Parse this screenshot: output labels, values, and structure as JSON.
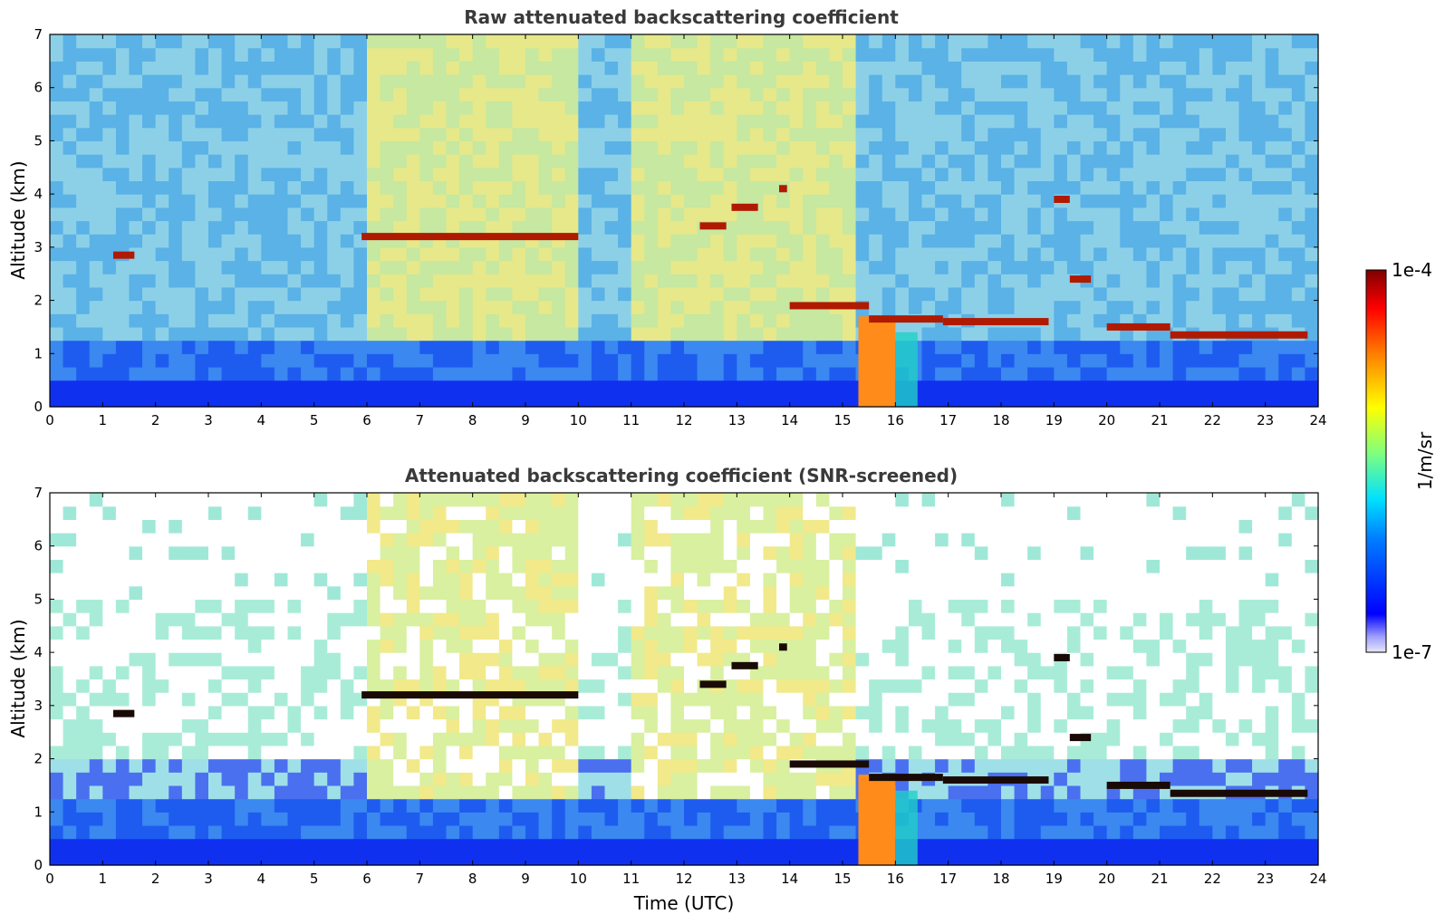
{
  "chart_data": [
    {
      "type": "heatmap",
      "title": "Raw attenuated backscattering coefficient",
      "xlabel": "",
      "ylabel": "Altitude (km)",
      "xlim": [
        0,
        24
      ],
      "ylim": [
        0,
        7
      ],
      "xticks": [
        "0",
        "1",
        "2",
        "3",
        "4",
        "5",
        "6",
        "7",
        "8",
        "9",
        "10",
        "11",
        "12",
        "13",
        "14",
        "15",
        "16",
        "17",
        "18",
        "19",
        "20",
        "21",
        "22",
        "23",
        "24"
      ],
      "yticks": [
        "0",
        "1",
        "2",
        "3",
        "4",
        "5",
        "6",
        "7"
      ],
      "screened": false,
      "cloud_layers": [
        {
          "x": [
            1.2,
            1.6
          ],
          "y": 2.85
        },
        {
          "x": [
            5.9,
            10.0
          ],
          "y": 3.2
        },
        {
          "x": [
            12.3,
            12.8
          ],
          "y": 3.4
        },
        {
          "x": [
            12.9,
            13.4
          ],
          "y": 3.75
        },
        {
          "x": [
            13.8,
            13.95
          ],
          "y": 4.1
        },
        {
          "x": [
            14.0,
            15.5
          ],
          "y": 1.9
        },
        {
          "x": [
            15.5,
            16.9
          ],
          "y": 1.65
        },
        {
          "x": [
            16.9,
            18.9
          ],
          "y": 1.6
        },
        {
          "x": [
            19.0,
            19.3
          ],
          "y": 3.9
        },
        {
          "x": [
            19.3,
            19.7
          ],
          "y": 2.4
        },
        {
          "x": [
            20.0,
            21.2
          ],
          "y": 1.5
        },
        {
          "x": [
            21.2,
            23.8
          ],
          "y": 1.35
        }
      ],
      "precipitation": [
        [
          15.3,
          16.0
        ]
      ]
    },
    {
      "type": "heatmap",
      "title": "Attenuated backscattering coefficient (SNR-screened)",
      "xlabel": "Time (UTC)",
      "ylabel": "Altitude (km)",
      "xlim": [
        0,
        24
      ],
      "ylim": [
        0,
        7
      ],
      "xticks": [
        "0",
        "1",
        "2",
        "3",
        "4",
        "5",
        "6",
        "7",
        "8",
        "9",
        "10",
        "11",
        "12",
        "13",
        "14",
        "15",
        "16",
        "17",
        "18",
        "19",
        "20",
        "21",
        "22",
        "23",
        "24"
      ],
      "yticks": [
        "0",
        "1",
        "2",
        "3",
        "4",
        "5",
        "6",
        "7"
      ],
      "screened": true,
      "cloud_layers": [
        {
          "x": [
            1.2,
            1.6
          ],
          "y": 2.85
        },
        {
          "x": [
            5.9,
            10.0
          ],
          "y": 3.2
        },
        {
          "x": [
            12.3,
            12.8
          ],
          "y": 3.4
        },
        {
          "x": [
            12.9,
            13.4
          ],
          "y": 3.75
        },
        {
          "x": [
            13.8,
            13.95
          ],
          "y": 4.1
        },
        {
          "x": [
            14.0,
            15.5
          ],
          "y": 1.9
        },
        {
          "x": [
            15.5,
            16.9
          ],
          "y": 1.65
        },
        {
          "x": [
            16.9,
            18.9
          ],
          "y": 1.6
        },
        {
          "x": [
            19.0,
            19.3
          ],
          "y": 3.9
        },
        {
          "x": [
            19.3,
            19.7
          ],
          "y": 2.4
        },
        {
          "x": [
            20.0,
            21.2
          ],
          "y": 1.5
        },
        {
          "x": [
            21.2,
            23.8
          ],
          "y": 1.35
        }
      ],
      "precipitation": [
        [
          15.3,
          16.0
        ]
      ]
    }
  ],
  "colorbar": {
    "label": "1/m/sr",
    "max_label": "1e-4",
    "min_label": "1e-7",
    "colors": [
      "#e6e6fa",
      "#0000ff",
      "#00c8ff",
      "#7fff7f",
      "#ffff00",
      "#ff7f00",
      "#ff0000",
      "#7f0000"
    ]
  }
}
